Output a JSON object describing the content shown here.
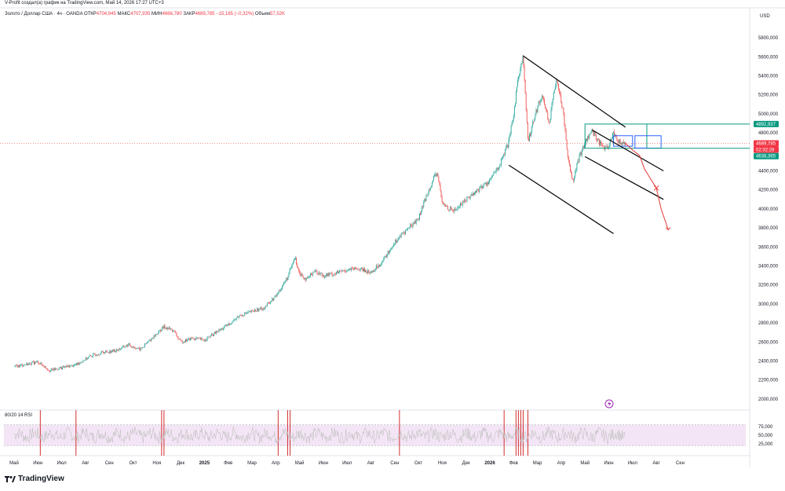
{
  "caption": "V-Profit создал(а) график на TradingView.com, Май 14, 2026 17:27 UTC+3",
  "symbol": {
    "name": "Золото / Доллар США · 4ч · OANDA",
    "open_label": "ОТКР",
    "open_value": "4704,945",
    "high_label": "МАКС",
    "high_value": "4707,935",
    "low_label": "МИН",
    "low_value": "4666,780",
    "close_label": "ЗАКР",
    "close_value": "4689,785",
    "change": "−15,165 (−0,32%)",
    "volume_label": "Объем",
    "volume_value": "57,52K"
  },
  "currency": "USD",
  "rsi_label": "80/20 14 RSI",
  "brand": "TradingView",
  "colors": {
    "up": "#26a69a",
    "down": "#ef5350",
    "rsi_fill": "#f3e5f5",
    "rsi_line": "#c2c2c2",
    "forecast": "#e53935",
    "box_green": "#089981",
    "box_blue": "#2962ff",
    "channel": "#000000",
    "alert": "#9c27b0"
  },
  "price_labels": {
    "upper": "4892,937",
    "last": "4689,785",
    "timer": "02:32:28",
    "lower": "4638,365"
  },
  "chart_data": {
    "type": "candlestick",
    "title": "Золото / Доллар США · 4ч · OANDA",
    "ylim": [
      1900,
      5950
    ],
    "y_ticks": [
      {
        "v": 5800,
        "label": "5800,000"
      },
      {
        "v": 5600,
        "label": "5600,000"
      },
      {
        "v": 5400,
        "label": "5400,000"
      },
      {
        "v": 5200,
        "label": "5200,000"
      },
      {
        "v": 5000,
        "label": "5000,000"
      },
      {
        "v": 4800,
        "label": "4800,000"
      },
      {
        "v": 4600,
        "label": "4600,000"
      },
      {
        "v": 4400,
        "label": "4400,000"
      },
      {
        "v": 4200,
        "label": "4200,000"
      },
      {
        "v": 4000,
        "label": "4000,000"
      },
      {
        "v": 3800,
        "label": "3800,000"
      },
      {
        "v": 3600,
        "label": "3600,000"
      },
      {
        "v": 3400,
        "label": "3400,000"
      },
      {
        "v": 3200,
        "label": "3200,000"
      },
      {
        "v": 3000,
        "label": "3000,000"
      },
      {
        "v": 2800,
        "label": "2800,000"
      },
      {
        "v": 2600,
        "label": "2600,000"
      },
      {
        "v": 2400,
        "label": "2400,000"
      },
      {
        "v": 2200,
        "label": "2200,000"
      },
      {
        "v": 2000,
        "label": "2000,000"
      }
    ],
    "time_ticks": [
      "Май",
      "Июн",
      "Июл",
      "Авг",
      "Сен",
      "Окт",
      "Ноя",
      "Дек",
      "2025",
      "Фев",
      "Мар",
      "Апр",
      "Май",
      "Июн",
      "Июл",
      "Авг",
      "Сен",
      "Окт",
      "Ноя",
      "Дек",
      "2026",
      "Фев",
      "Мар",
      "Апр",
      "Май",
      "Июн",
      "Июл",
      "Авг",
      "Сен"
    ],
    "bold_ticks": [
      "2025",
      "2026"
    ],
    "price_path": [
      [
        0,
        2340
      ],
      [
        1,
        2390
      ],
      [
        1.5,
        2300
      ],
      [
        2,
        2330
      ],
      [
        2.6,
        2360
      ],
      [
        3.2,
        2450
      ],
      [
        3.7,
        2490
      ],
      [
        4.3,
        2510
      ],
      [
        4.8,
        2570
      ],
      [
        5.3,
        2520
      ],
      [
        5.8,
        2640
      ],
      [
        6.3,
        2760
      ],
      [
        6.7,
        2720
      ],
      [
        7.0,
        2600
      ],
      [
        7.5,
        2640
      ],
      [
        8.0,
        2620
      ],
      [
        8.5,
        2700
      ],
      [
        9.0,
        2780
      ],
      [
        9.5,
        2880
      ],
      [
        10.0,
        2920
      ],
      [
        10.5,
        2960
      ],
      [
        11.0,
        3080
      ],
      [
        11.5,
        3280
      ],
      [
        11.8,
        3490
      ],
      [
        12.0,
        3330
      ],
      [
        12.3,
        3250
      ],
      [
        12.6,
        3350
      ],
      [
        13.0,
        3300
      ],
      [
        13.5,
        3320
      ],
      [
        14.0,
        3360
      ],
      [
        14.5,
        3370
      ],
      [
        15.0,
        3330
      ],
      [
        15.5,
        3450
      ],
      [
        16.0,
        3650
      ],
      [
        16.5,
        3780
      ],
      [
        17.0,
        3900
      ],
      [
        17.5,
        4250
      ],
      [
        17.8,
        4380
      ],
      [
        18.0,
        4050
      ],
      [
        18.5,
        3980
      ],
      [
        19.0,
        4100
      ],
      [
        19.5,
        4200
      ],
      [
        20.0,
        4300
      ],
      [
        20.4,
        4450
      ],
      [
        20.8,
        4700
      ],
      [
        21.0,
        5000
      ],
      [
        21.2,
        5400
      ],
      [
        21.4,
        5600
      ],
      [
        21.6,
        4700
      ],
      [
        21.9,
        5000
      ],
      [
        22.2,
        5200
      ],
      [
        22.5,
        4900
      ],
      [
        22.8,
        5400
      ],
      [
        23.1,
        5000
      ],
      [
        23.3,
        4500
      ],
      [
        23.5,
        4300
      ],
      [
        23.7,
        4500
      ],
      [
        24.0,
        4700
      ],
      [
        24.3,
        4820
      ],
      [
        24.6,
        4700
      ],
      [
        24.9,
        4620
      ],
      [
        25.2,
        4800
      ],
      [
        25.5,
        4680
      ],
      [
        25.7,
        4690
      ]
    ],
    "forecast_path": [
      [
        25.7,
        4690
      ],
      [
        26.0,
        4620
      ],
      [
        26.3,
        4560
      ],
      [
        26.5,
        4420
      ],
      [
        26.8,
        4300
      ],
      [
        27.0,
        4220
      ],
      [
        27.2,
        4000
      ],
      [
        27.5,
        3780
      ]
    ],
    "channels": [
      {
        "from": [
          21.4,
          5610
        ],
        "to": [
          25.7,
          4860
        ]
      },
      {
        "from": [
          20.8,
          4460
        ],
        "to": [
          25.2,
          3740
        ]
      },
      {
        "from": [
          24.3,
          4830
        ],
        "to": [
          27.3,
          4400
        ]
      },
      {
        "from": [
          24.0,
          4550
        ],
        "to": [
          27.3,
          4100
        ]
      }
    ],
    "zones": [
      {
        "x0": 24.0,
        "x1": 26.6,
        "y0": 4892.937,
        "y1": 4638.365,
        "color": "box_green"
      },
      {
        "x0": 25.2,
        "x1": 26.0,
        "y0": 4770,
        "y1": 4660,
        "color": "box_blue"
      },
      {
        "x0": 26.1,
        "x1": 27.2,
        "y0": 4770,
        "y1": 4640,
        "color": "box_blue"
      }
    ],
    "rsi": {
      "ylim": [
        0,
        100
      ],
      "levels": [
        {
          "v": 75,
          "label": "75,000"
        },
        {
          "v": 50,
          "label": "50,000"
        },
        {
          "v": 25,
          "label": "25,000"
        }
      ],
      "bands": [
        80,
        20
      ],
      "overbought_marks": [
        1.1,
        2.6,
        6.2,
        6.3,
        11.1,
        11.5,
        11.6,
        16.2,
        20.6,
        21.1,
        21.2,
        21.3,
        21.4,
        21.6
      ]
    }
  }
}
